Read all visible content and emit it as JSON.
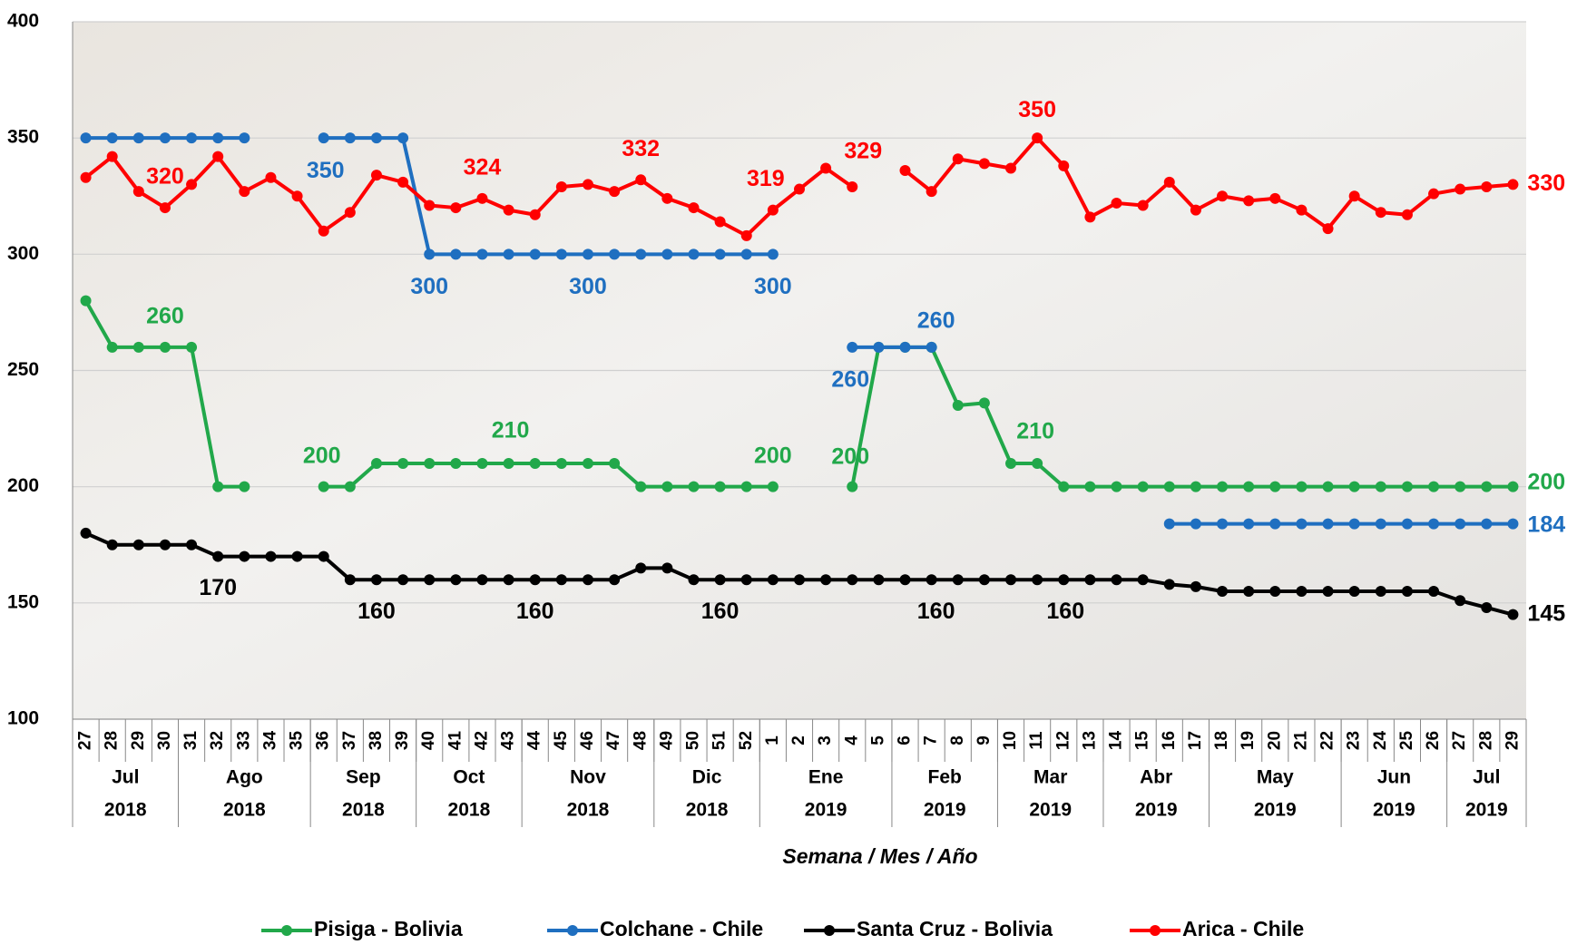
{
  "chart_data": {
    "type": "line",
    "x_title": "Semana / Mes / Año",
    "categories": [
      "27",
      "28",
      "29",
      "30",
      "31",
      "32",
      "33",
      "34",
      "35",
      "36",
      "37",
      "38",
      "39",
      "40",
      "41",
      "42",
      "43",
      "44",
      "45",
      "46",
      "47",
      "48",
      "49",
      "50",
      "51",
      "52",
      "1",
      "2",
      "3",
      "4",
      "5",
      "6",
      "7",
      "8",
      "9",
      "10",
      "11",
      "12",
      "13",
      "14",
      "15",
      "16",
      "17",
      "18",
      "19",
      "20",
      "21",
      "22",
      "23",
      "24",
      "25",
      "26",
      "27",
      "28",
      "29"
    ],
    "months": [
      "Jul",
      "Jul",
      "Jul",
      "Jul",
      "Ago",
      "Ago",
      "Ago",
      "Ago",
      "Ago",
      "Sep",
      "Sep",
      "Sep",
      "Sep",
      "Oct",
      "Oct",
      "Oct",
      "Oct",
      "Nov",
      "Nov",
      "Nov",
      "Nov",
      "Nov",
      "Dic",
      "Dic",
      "Dic",
      "Dic",
      "Ene",
      "Ene",
      "Ene",
      "Ene",
      "Ene",
      "Feb",
      "Feb",
      "Feb",
      "Feb",
      "Mar",
      "Mar",
      "Mar",
      "Mar",
      "Abr",
      "Abr",
      "Abr",
      "Abr",
      "May",
      "May",
      "May",
      "May",
      "May",
      "Jun",
      "Jun",
      "Jun",
      "Jun",
      "Jul",
      "Jul",
      "Jul"
    ],
    "years": [
      "2018",
      "2018",
      "2018",
      "2018",
      "2018",
      "2018",
      "2018",
      "2018",
      "2018",
      "2018",
      "2018",
      "2018",
      "2018",
      "2018",
      "2018",
      "2018",
      "2018",
      "2018",
      "2018",
      "2018",
      "2018",
      "2018",
      "2018",
      "2018",
      "2018",
      "2018",
      "2019",
      "2019",
      "2019",
      "2019",
      "2019",
      "2019",
      "2019",
      "2019",
      "2019",
      "2019",
      "2019",
      "2019",
      "2019",
      "2019",
      "2019",
      "2019",
      "2019",
      "2019",
      "2019",
      "2019",
      "2019",
      "2019",
      "2019",
      "2019",
      "2019",
      "2019",
      "2019",
      "2019",
      "2019"
    ],
    "ylim": [
      100,
      400
    ],
    "yticks": [
      100,
      150,
      200,
      250,
      300,
      350,
      400
    ],
    "grid": true,
    "legend": "bottom",
    "series": [
      {
        "name": "Pisiga - Bolivia",
        "color": "#21a84a",
        "values": [
          280,
          260,
          260,
          260,
          260,
          200,
          200,
          null,
          null,
          200,
          200,
          210,
          210,
          210,
          210,
          210,
          210,
          210,
          210,
          210,
          210,
          200,
          200,
          200,
          200,
          200,
          200,
          null,
          null,
          200,
          260,
          260,
          260,
          235,
          236,
          210,
          210,
          200,
          200,
          200,
          200,
          200,
          200,
          200,
          200,
          200,
          200,
          200,
          200,
          200,
          200,
          200,
          200,
          200,
          200
        ]
      },
      {
        "name": "Colchane - Chile",
        "color": "#1f6fc0",
        "values": [
          350,
          350,
          350,
          350,
          350,
          350,
          350,
          null,
          null,
          350,
          350,
          350,
          350,
          300,
          300,
          300,
          300,
          300,
          300,
          300,
          300,
          300,
          300,
          300,
          300,
          300,
          300,
          null,
          null,
          260,
          260,
          260,
          260,
          null,
          null,
          null,
          null,
          null,
          null,
          null,
          null,
          184,
          184,
          184,
          184,
          184,
          184,
          184,
          184,
          184,
          184,
          184,
          184,
          184,
          184
        ]
      },
      {
        "name": "Santa Cruz - Bolivia",
        "color": "#000000",
        "values": [
          180,
          175,
          175,
          175,
          175,
          170,
          170,
          170,
          170,
          170,
          160,
          160,
          160,
          160,
          160,
          160,
          160,
          160,
          160,
          160,
          160,
          165,
          165,
          160,
          160,
          160,
          160,
          160,
          160,
          160,
          160,
          160,
          160,
          160,
          160,
          160,
          160,
          160,
          160,
          160,
          160,
          158,
          157,
          155,
          155,
          155,
          155,
          155,
          155,
          155,
          155,
          155,
          151,
          148,
          145
        ]
      },
      {
        "name": "Arica - Chile",
        "color": "#ff0000",
        "values": [
          333,
          342,
          327,
          320,
          330,
          342,
          327,
          333,
          325,
          310,
          318,
          334,
          331,
          321,
          320,
          324,
          319,
          317,
          329,
          330,
          327,
          332,
          324,
          320,
          314,
          308,
          319,
          328,
          337,
          329,
          null,
          336,
          327,
          341,
          339,
          337,
          350,
          338,
          316,
          322,
          321,
          331,
          319,
          325,
          323,
          324,
          319,
          311,
          325,
          318,
          317,
          326,
          328,
          329,
          330
        ]
      }
    ]
  }
}
